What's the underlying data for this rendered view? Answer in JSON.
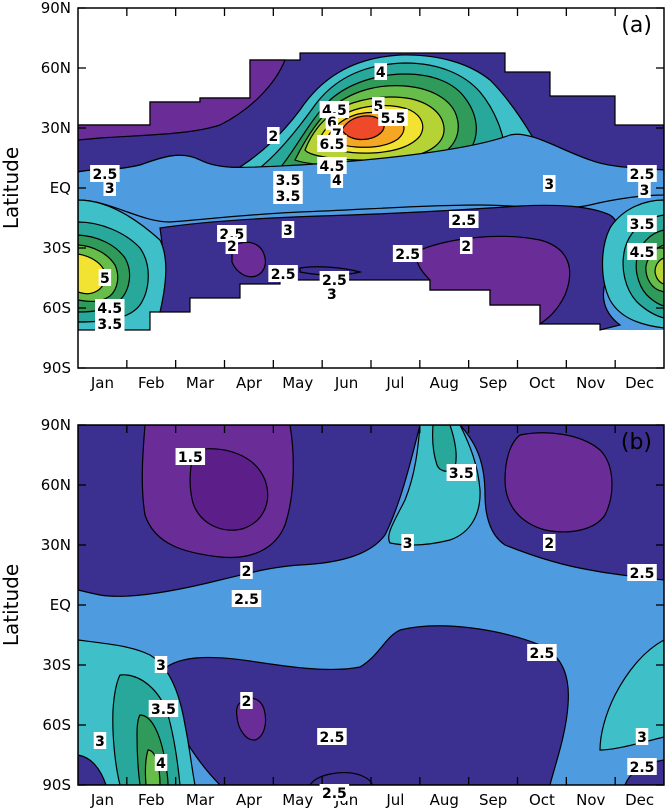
{
  "colors": {
    "c15": "#5c1f8a",
    "c2": "#6a2c96",
    "c25": "#3b2f8f",
    "c3": "#4f9be0",
    "c35": "#3fbfc7",
    "c4": "#27a89a",
    "c45": "#2f9a5a",
    "c5": "#67bd4a",
    "c55": "#b5d334",
    "c6": "#f2e232",
    "c65": "#f5a623",
    "c7": "#ee4a2a",
    "line": "#000000"
  },
  "chart_data": [
    {
      "type": "heatmap",
      "subtype": "filled-contour",
      "panel_label": "(a)",
      "ylabel": "Latitude",
      "xlabel": "",
      "x_ticks": [
        "Jan",
        "Feb",
        "Mar",
        "Apr",
        "May",
        "Jun",
        "Jul",
        "Aug",
        "Sep",
        "Oct",
        "Nov",
        "Dec"
      ],
      "y_ticks": [
        "90N",
        "60N",
        "30N",
        "EQ",
        "30S",
        "60S",
        "90S"
      ],
      "ylim": [
        -90,
        90
      ],
      "contour_levels": [
        2,
        2.5,
        3,
        3.5,
        4,
        4.5,
        5,
        5.5,
        6,
        6.5,
        7
      ],
      "has_missing_data_region": true,
      "contour_labels": [
        {
          "text": "2",
          "month": 4.0,
          "lat": 26
        },
        {
          "text": "2.5",
          "month": 0.55,
          "lat": 7
        },
        {
          "text": "3",
          "month": 0.65,
          "lat": 0
        },
        {
          "text": "4",
          "month": 6.2,
          "lat": 58
        },
        {
          "text": "4.5",
          "month": 5.25,
          "lat": 39
        },
        {
          "text": "5",
          "month": 6.15,
          "lat": 41
        },
        {
          "text": "5.5",
          "month": 6.45,
          "lat": 35
        },
        {
          "text": "6",
          "month": 5.2,
          "lat": 33
        },
        {
          "text": "7",
          "month": 5.3,
          "lat": 27
        },
        {
          "text": "6.5",
          "month": 5.2,
          "lat": 22
        },
        {
          "text": "4.5",
          "month": 5.2,
          "lat": 11
        },
        {
          "text": "4",
          "month": 5.3,
          "lat": 4
        },
        {
          "text": "3.5",
          "month": 4.3,
          "lat": 4
        },
        {
          "text": "3.5",
          "month": 4.3,
          "lat": -4
        },
        {
          "text": "3",
          "month": 9.65,
          "lat": 2
        },
        {
          "text": "2.5",
          "month": 11.55,
          "lat": 7
        },
        {
          "text": "3",
          "month": 11.6,
          "lat": -1
        },
        {
          "text": "2.5",
          "month": 7.9,
          "lat": -16
        },
        {
          "text": "2",
          "month": 7.95,
          "lat": -29
        },
        {
          "text": "3.5",
          "month": 11.55,
          "lat": -18
        },
        {
          "text": "4.5",
          "month": 11.55,
          "lat": -32
        },
        {
          "text": "2.5",
          "month": 3.15,
          "lat": -23
        },
        {
          "text": "2",
          "month": 3.15,
          "lat": -29
        },
        {
          "text": "3",
          "month": 4.3,
          "lat": -21
        },
        {
          "text": "2.5",
          "month": 6.75,
          "lat": -33
        },
        {
          "text": "2.5",
          "month": 4.2,
          "lat": -43
        },
        {
          "text": "2.5",
          "month": 5.25,
          "lat": -46
        },
        {
          "text": "3",
          "month": 5.2,
          "lat": -53
        },
        {
          "text": "5",
          "month": 0.55,
          "lat": -45
        },
        {
          "text": "4.5",
          "month": 0.65,
          "lat": -60
        },
        {
          "text": "3.5",
          "month": 0.65,
          "lat": -68
        }
      ]
    },
    {
      "type": "heatmap",
      "subtype": "filled-contour",
      "panel_label": "(b)",
      "ylabel": "Latitude",
      "xlabel": "",
      "x_ticks": [
        "Jan",
        "Feb",
        "Mar",
        "Apr",
        "May",
        "Jun",
        "Jul",
        "Aug",
        "Sep",
        "Oct",
        "Nov",
        "Dec"
      ],
      "y_ticks": [
        "90N",
        "60N",
        "30N",
        "EQ",
        "30S",
        "60S",
        "90S"
      ],
      "ylim": [
        -90,
        90
      ],
      "contour_levels": [
        1.5,
        2,
        2.5,
        3,
        3.5,
        4
      ],
      "contour_labels": [
        {
          "text": "1.5",
          "month": 2.3,
          "lat": 74
        },
        {
          "text": "3.5",
          "month": 7.85,
          "lat": 66
        },
        {
          "text": "3",
          "month": 6.75,
          "lat": 31
        },
        {
          "text": "2",
          "month": 3.45,
          "lat": 17
        },
        {
          "text": "2",
          "month": 9.65,
          "lat": 31
        },
        {
          "text": "2.5",
          "month": 3.45,
          "lat": 3
        },
        {
          "text": "2.5",
          "month": 11.55,
          "lat": 16
        },
        {
          "text": "2.5",
          "month": 9.5,
          "lat": -24
        },
        {
          "text": "3",
          "month": 1.7,
          "lat": -30
        },
        {
          "text": "3.5",
          "month": 1.75,
          "lat": -52
        },
        {
          "text": "2",
          "month": 3.45,
          "lat": -48
        },
        {
          "text": "2.5",
          "month": 5.2,
          "lat": -66
        },
        {
          "text": "3",
          "month": 0.45,
          "lat": -68
        },
        {
          "text": "4",
          "month": 1.7,
          "lat": -79
        },
        {
          "text": "3",
          "month": 11.55,
          "lat": -66
        },
        {
          "text": "2.5",
          "month": 11.55,
          "lat": -81
        },
        {
          "text": "2.5",
          "month": 5.25,
          "lat": -94
        }
      ]
    }
  ]
}
